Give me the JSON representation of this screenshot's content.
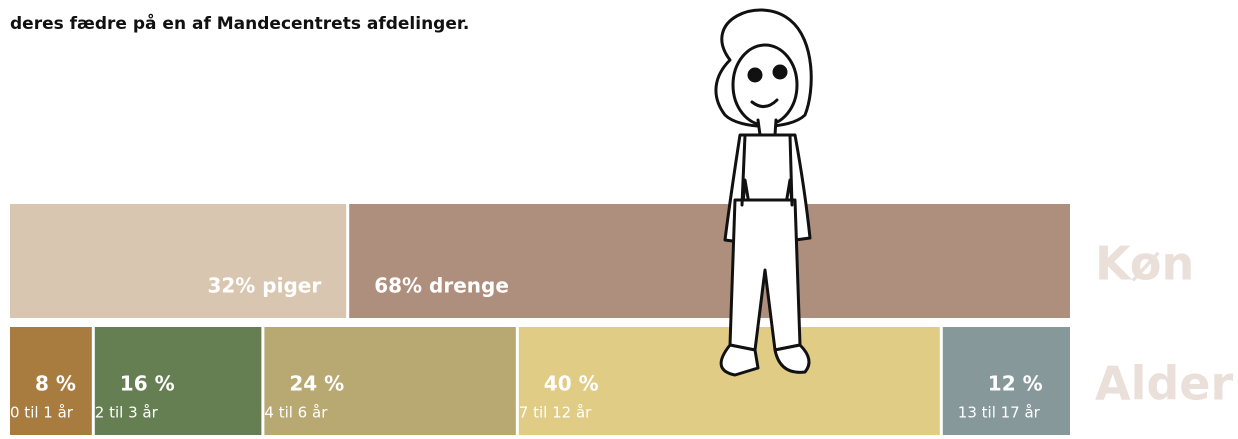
{
  "intro": "deres fædre på en af Mandecentrets afdelinger.",
  "chart_data": [
    {
      "type": "stacked-bar",
      "title": "Køn",
      "xlim": [
        0,
        100
      ],
      "series": [
        {
          "color": "#d9c6b1",
          "values": [
            32
          ],
          "value_labels": [
            "32% piger"
          ]
        },
        {
          "color": "#ae8f7e",
          "values": [
            68
          ],
          "value_labels": [
            "68% drenge"
          ]
        }
      ]
    },
    {
      "type": "stacked-bar",
      "title": "Alder",
      "xlim": [
        0,
        100
      ],
      "series": [
        {
          "name": "0 til 1 år",
          "color": "#a87b3e",
          "values": [
            8
          ],
          "value_labels": [
            "8 %"
          ]
        },
        {
          "name": "2 til 3 år",
          "color": "#657f52",
          "values": [
            16
          ],
          "value_labels": [
            "16 %"
          ]
        },
        {
          "name": "4 til 6 år",
          "color": "#b8a872",
          "values": [
            24
          ],
          "value_labels": [
            "24 %"
          ]
        },
        {
          "name": "7 til 12 år",
          "color": "#e0cc85",
          "values": [
            40
          ],
          "value_labels": [
            "40 %"
          ]
        },
        {
          "name": "13 til 17 år",
          "color": "#87989b",
          "values": [
            12
          ],
          "value_labels": [
            "12 %"
          ]
        }
      ]
    }
  ]
}
